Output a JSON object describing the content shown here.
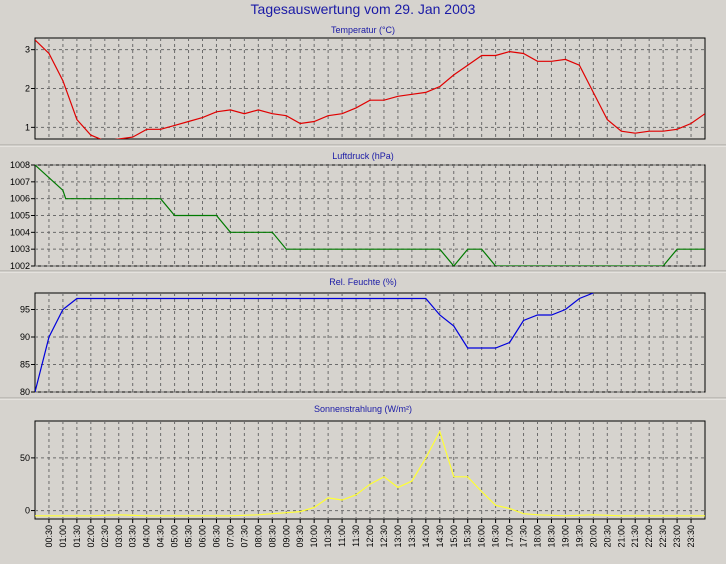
{
  "title": "Tagesauswertung vom 29. Jan 2003",
  "x_labels": [
    "00:30",
    "01:00",
    "01:30",
    "02:00",
    "02:30",
    "03:00",
    "03:30",
    "04:00",
    "04:30",
    "05:00",
    "05:30",
    "06:00",
    "06:30",
    "07:00",
    "07:30",
    "08:00",
    "08:30",
    "09:00",
    "09:30",
    "10:00",
    "10:30",
    "11:00",
    "11:30",
    "12:00",
    "12:30",
    "13:00",
    "13:30",
    "14:00",
    "14:30",
    "15:00",
    "15:30",
    "16:00",
    "16:30",
    "17:00",
    "17:30",
    "18:00",
    "18:30",
    "19:00",
    "19:30",
    "20:00",
    "20:30",
    "21:00",
    "21:30",
    "22:00",
    "22:30",
    "23:00",
    "23:30"
  ],
  "chart_data": [
    {
      "type": "line",
      "title": "Temperatur (°C)",
      "color": "#e00000",
      "ylim": [
        0.7,
        3.3
      ],
      "yticks": [
        1,
        2,
        3
      ],
      "ytick_labels": [
        "1",
        "2",
        "3"
      ],
      "x": [
        0,
        0.5,
        1,
        1.5,
        2,
        2.5,
        3,
        3.5,
        4,
        4.5,
        5,
        5.5,
        6,
        6.5,
        7,
        7.5,
        8,
        8.5,
        9,
        9.5,
        10,
        10.5,
        11,
        11.5,
        12,
        12.5,
        13,
        13.5,
        14,
        14.5,
        15,
        15.5,
        16,
        16.5,
        17,
        17.5,
        18,
        18.5,
        19,
        19.5,
        20,
        20.5,
        21,
        21.5,
        22,
        22.5,
        23,
        23.5,
        24
      ],
      "values": [
        3.25,
        2.9,
        2.2,
        1.2,
        0.8,
        0.65,
        0.7,
        0.75,
        0.95,
        0.95,
        1.05,
        1.15,
        1.25,
        1.4,
        1.45,
        1.35,
        1.45,
        1.35,
        1.3,
        1.1,
        1.15,
        1.3,
        1.35,
        1.5,
        1.7,
        1.7,
        1.8,
        1.85,
        1.9,
        2.05,
        2.35,
        2.6,
        2.85,
        2.85,
        2.95,
        2.9,
        2.7,
        2.7,
        2.75,
        2.6,
        1.9,
        1.2,
        0.9,
        0.85,
        0.9,
        0.9,
        0.95,
        1.1,
        1.35
      ]
    },
    {
      "type": "line",
      "title": "Luftdruck (hPa)",
      "color": "#007a00",
      "ylim": [
        1002,
        1008
      ],
      "yticks": [
        1002,
        1003,
        1004,
        1005,
        1006,
        1007,
        1008
      ],
      "ytick_labels": [
        "1002",
        "1003",
        "1004",
        "1005",
        "1006",
        "1007",
        "1008"
      ],
      "x": [
        0,
        1,
        1.1,
        2,
        3,
        4,
        4.5,
        5,
        5.5,
        6,
        6.5,
        7,
        7.5,
        8,
        8.5,
        9,
        9.5,
        10,
        11,
        12,
        13,
        14,
        14.5,
        15,
        15.5,
        16,
        16.5,
        17,
        18,
        19,
        20,
        21,
        22,
        22.5,
        23,
        23.5,
        24
      ],
      "values": [
        1008,
        1006.5,
        1006,
        1006,
        1006,
        1006,
        1006,
        1005,
        1005,
        1005,
        1005,
        1004,
        1004,
        1004,
        1004,
        1003,
        1003,
        1003,
        1003,
        1003,
        1003,
        1003,
        1003,
        1002,
        1003,
        1003,
        1002,
        1002,
        1002,
        1002,
        1002,
        1002,
        1002,
        1002,
        1003,
        1003,
        1003
      ]
    },
    {
      "type": "line",
      "title": "Rel. Feuchte (%)",
      "color": "#0000dd",
      "ylim": [
        80,
        98
      ],
      "yticks": [
        80,
        85,
        90,
        95
      ],
      "ytick_labels": [
        "80",
        "85",
        "90",
        "95"
      ],
      "x": [
        0,
        0.5,
        1,
        1.5,
        2,
        3,
        4,
        5,
        6,
        7,
        8,
        9,
        10,
        11,
        12,
        13,
        14,
        14.5,
        15,
        15.5,
        16,
        16.5,
        17,
        17.5,
        18,
        18.5,
        19,
        19.5,
        20
      ],
      "values": [
        80,
        90,
        95,
        97,
        97,
        97,
        97,
        97,
        97,
        97,
        97,
        97,
        97,
        97,
        97,
        97,
        97,
        94,
        92,
        88,
        88,
        88,
        89,
        93,
        94,
        94,
        95,
        97,
        98
      ]
    },
    {
      "type": "line",
      "title": "Sonnenstrahlung (W/m²)",
      "color": "#ffff33",
      "ylim": [
        -8,
        85
      ],
      "yticks": [
        0,
        50
      ],
      "ytick_labels": [
        "0",
        "50"
      ],
      "x": [
        0,
        1,
        2,
        3,
        4,
        5,
        6,
        7,
        8,
        8.5,
        9,
        9.5,
        10,
        10.5,
        11,
        11.5,
        12,
        12.5,
        13,
        13.5,
        14,
        14.5,
        15,
        15.5,
        16,
        16.5,
        17,
        17.5,
        18,
        19,
        20,
        21,
        22,
        23,
        24
      ],
      "values": [
        -5,
        -5,
        -5,
        -4,
        -5,
        -5,
        -5,
        -5,
        -4,
        -3,
        -2,
        -1,
        3,
        12,
        10,
        15,
        25,
        32,
        22,
        28,
        50,
        75,
        32,
        32,
        18,
        5,
        2,
        -3,
        -4,
        -5,
        -4,
        -5,
        -5,
        -5,
        -5
      ]
    }
  ]
}
